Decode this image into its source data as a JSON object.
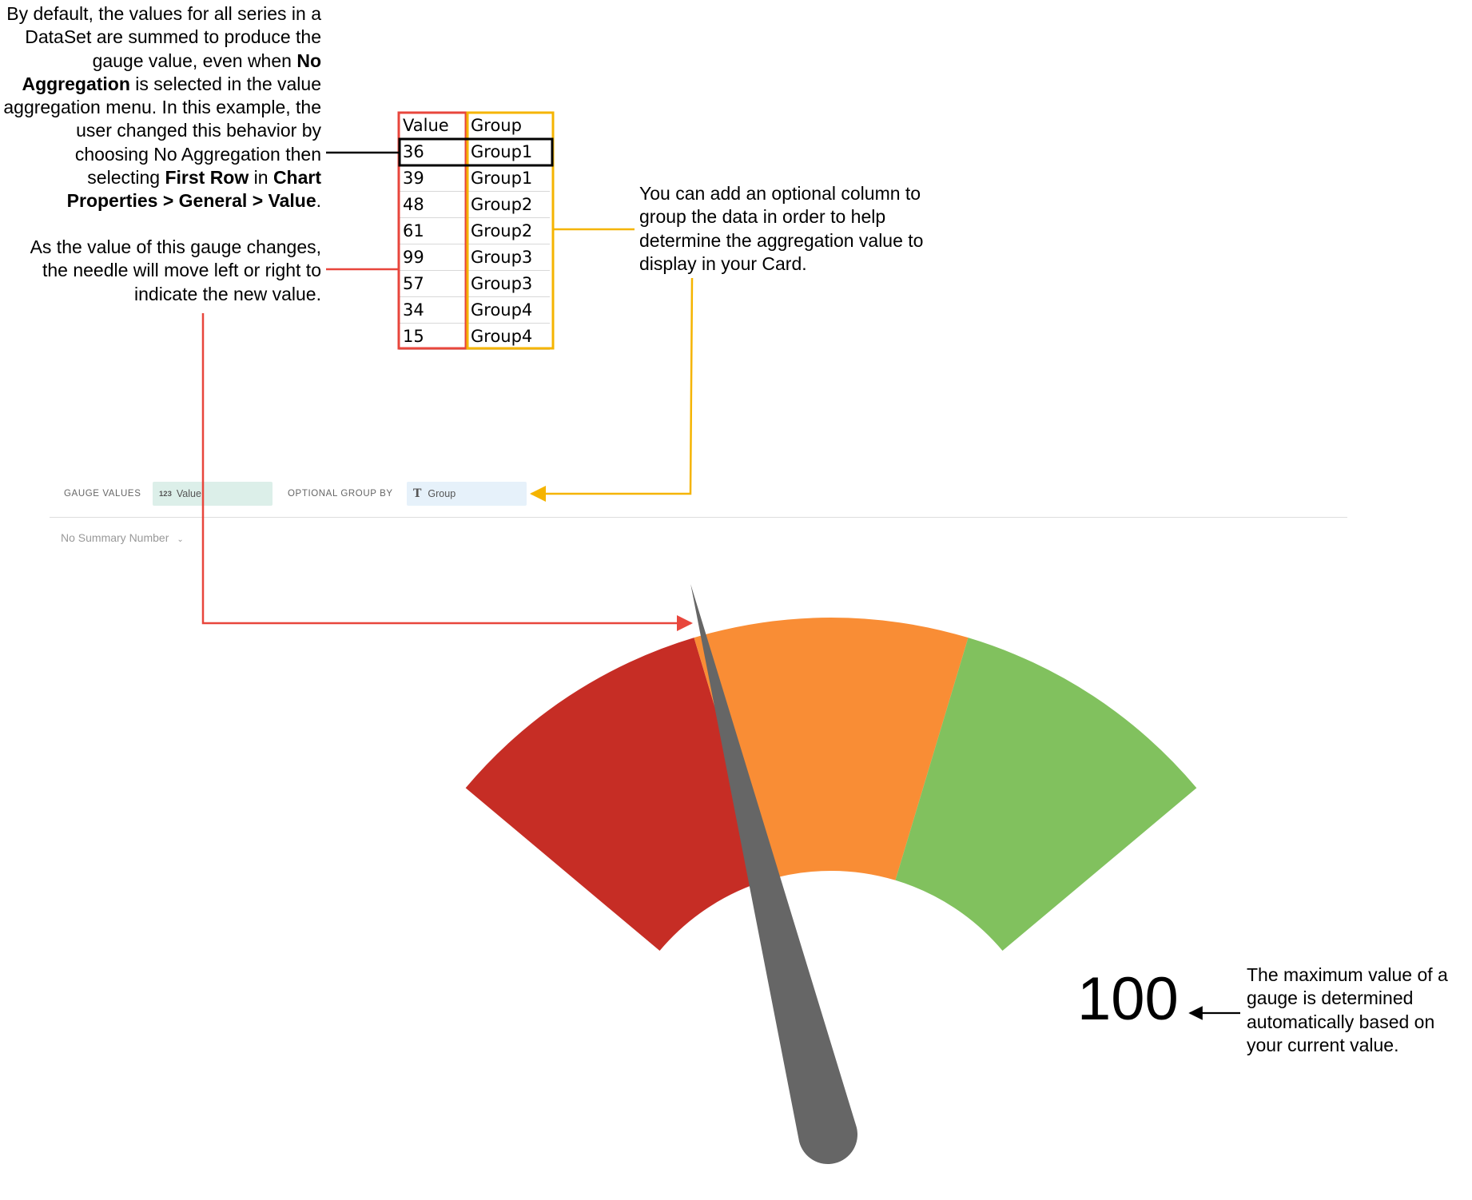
{
  "callouts": {
    "aggregation": {
      "p1": "By default, the values for all series in a DataSet are summed to produce the gauge value, even when ",
      "b1": "No Aggregation",
      "p2": " is selected in the value aggregation menu. In this example, the user changed this behavior by choosing No Aggregation then selecting ",
      "b2": "First Row",
      "p3": " in ",
      "b3": "Chart Properties > General > Value",
      "p4": "."
    },
    "needle": "As the value of this gauge changes, the needle will move left or right to indicate the new value.",
    "group_column": "You can add an optional column to group the data in order to help determine the aggregation value to display in your Card.",
    "maximum": "The maximum value of a gauge is determined automatically based on your current value."
  },
  "table": {
    "headers": [
      "Value",
      "Group"
    ],
    "rows": [
      [
        "36",
        "Group1"
      ],
      [
        "39",
        "Group1"
      ],
      [
        "48",
        "Group2"
      ],
      [
        "61",
        "Group2"
      ],
      [
        "99",
        "Group3"
      ],
      [
        "57",
        "Group3"
      ],
      [
        "34",
        "Group4"
      ],
      [
        "15",
        "Group4"
      ]
    ],
    "highlighted_row": 0,
    "value_column_border": "#e8463c",
    "group_column_border": "#f5b400",
    "highlight_border": "#000000"
  },
  "toolbar": {
    "gauge_values_label": "GAUGE VALUES",
    "value_pill_icon": "123",
    "value_pill_text": "Value",
    "group_by_label": "OPTIONAL GROUP BY",
    "group_pill_icon": "T",
    "group_pill_text": "Group",
    "summary_select": "No Summary Number"
  },
  "gauge": {
    "max_label": "100",
    "min": 0,
    "max": 100,
    "needle_value": 36,
    "bands": [
      {
        "name": "red",
        "from": 0,
        "to": 33.3,
        "color": "#c62d25"
      },
      {
        "name": "orange",
        "from": 33.3,
        "to": 66.7,
        "color": "#f98d35"
      },
      {
        "name": "green",
        "from": 66.7,
        "to": 100,
        "color": "#81c15e"
      }
    ],
    "needle_color": "#666666"
  },
  "colors": {
    "red_connector": "#e8463c",
    "yellow_connector": "#f5b400",
    "black_connector": "#000000"
  }
}
